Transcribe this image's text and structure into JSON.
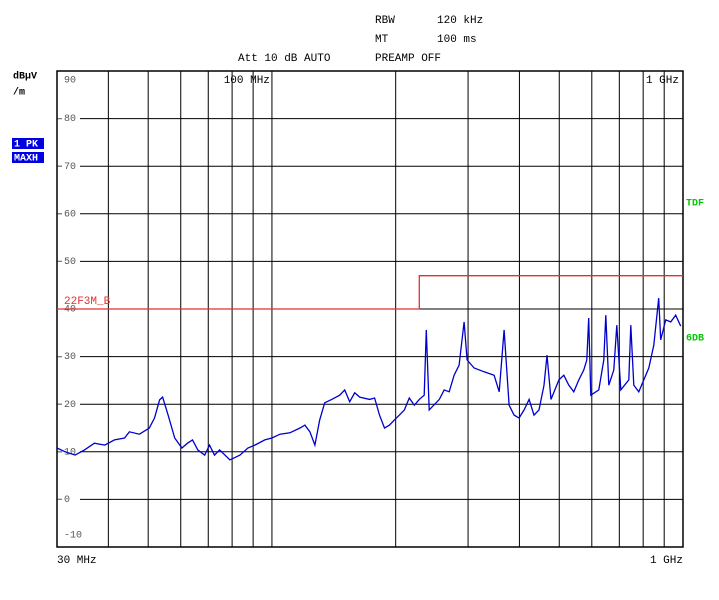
{
  "chart_data": {
    "type": "line",
    "x_scale": "log",
    "settings": [
      [
        "RBW",
        "120 kHz"
      ],
      [
        "MT",
        "100 ms"
      ]
    ],
    "att": "Att 10 dB AUTO",
    "preamp": "PREAMP OFF",
    "ylabel": [
      "dBµV",
      "/m"
    ],
    "trace_labels": [
      "1 PK",
      "MAXH"
    ],
    "side_labels": [
      "TDF",
      "6DB"
    ],
    "xlim": [
      30,
      1000
    ],
    "ylim": [
      -10,
      90
    ],
    "yticks": [
      90,
      80,
      70,
      60,
      50,
      40,
      30,
      20,
      10,
      0,
      -10
    ],
    "xticks": [
      {
        "value": 30,
        "label": "30 MHz"
      },
      40,
      50,
      60,
      70,
      80,
      90,
      100,
      200,
      300,
      400,
      500,
      600,
      700,
      800,
      900,
      {
        "value": 1000,
        "label": "1 GHz"
      }
    ],
    "xticks_top": [
      {
        "value": 100,
        "label": "100 MHz"
      },
      {
        "value": 1000,
        "label": "1 GHz"
      }
    ],
    "grid": true,
    "series": [
      {
        "name": "22F3M_B",
        "color": "#e03030",
        "x": [
          30,
          228.3,
          228.3,
          1000
        ],
        "values": [
          40,
          40,
          47,
          47
        ]
      },
      {
        "color": "#0000cc",
        "x": [
          30,
          31.4,
          33.2,
          35.0,
          37.0,
          39.2,
          41.4,
          43.8,
          45.0,
          47.6,
          50.3,
          51.8,
          53.3,
          54.2,
          55.9,
          58.0,
          60.4,
          62.3,
          64.1,
          66.0,
          68.6,
          70.5,
          72.5,
          74.6,
          79.0,
          83.6,
          87.4,
          90.9,
          96.1,
          100,
          104.6,
          110.6,
          117.0,
          120.3,
          123.7,
          127.2,
          130.7,
          134.4,
          139.8,
          146.2,
          150.3,
          154.6,
          159.0,
          163.5,
          172.8,
          177.7,
          182.7,
          187.9,
          193.2,
          198.6,
          204.2,
          210.0,
          215.9,
          222.0,
          228.3,
          234.7,
          237.4,
          241.3,
          255.3,
          262.5,
          269.9,
          277.5,
          285.3,
          293.4,
          298.4,
          310.3,
          328.2,
          347.2,
          357.1,
          367.2,
          377.6,
          388.3,
          399.3,
          410.6,
          422.2,
          434.1,
          446.4,
          459.0,
          466.8,
          477.3,
          498.9,
          513.0,
          527.6,
          542.5,
          557.8,
          573.6,
          583.3,
          589.8,
          596.5,
          624.0,
          641.6,
          648.9,
          659.8,
          678.5,
          690.1,
          705.7,
          738.1,
          746.4,
          759.0,
          780.6,
          802.7,
          825.5,
          848.9,
          872.9,
          882.7,
          907.8,
          933.5,
          959.9,
          987.1
        ],
        "values": [
          10.8,
          10,
          9.3,
          10.4,
          11.8,
          11.4,
          12.5,
          12.9,
          14.2,
          13.7,
          15,
          17.1,
          20.9,
          21.5,
          17.7,
          12.9,
          10.8,
          11.8,
          12.5,
          10.4,
          9.3,
          11.4,
          9.3,
          10.4,
          8.3,
          9.3,
          10.8,
          11.4,
          12.5,
          12.9,
          13.7,
          14.0,
          15,
          15.6,
          14.2,
          11.4,
          16.7,
          20.3,
          21,
          21.9,
          23,
          20.5,
          22.4,
          21.5,
          21,
          21.3,
          17.7,
          15,
          15.6,
          16.7,
          17.7,
          18.8,
          21.3,
          19.8,
          21,
          21.9,
          35.6,
          18.8,
          21,
          23,
          22.6,
          26.1,
          28.2,
          37.3,
          29.3,
          27.6,
          26.8,
          26.1,
          22.6,
          35.6,
          19.8,
          17.7,
          17.1,
          18.8,
          21,
          17.7,
          18.8,
          24.0,
          30.3,
          21,
          25.1,
          26.1,
          24,
          22.6,
          25.1,
          27.2,
          29.3,
          38.1,
          21.9,
          23,
          29.3,
          38.7,
          24,
          27.2,
          36.6,
          23,
          25.1,
          36.6,
          24,
          22.6,
          25.1,
          27.6,
          32.4,
          42.3,
          33.5,
          37.7,
          37.3,
          38.7,
          36.4
        ]
      }
    ]
  }
}
